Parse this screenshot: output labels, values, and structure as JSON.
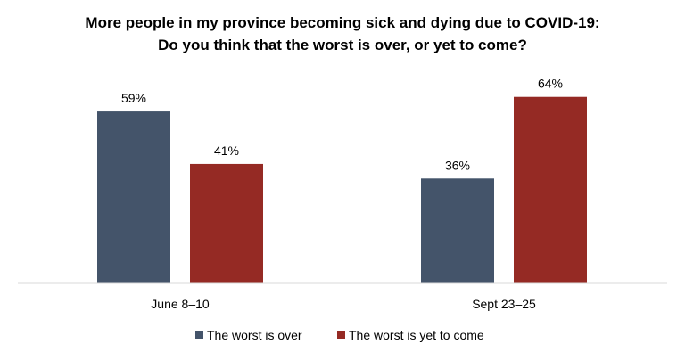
{
  "chart_data": {
    "type": "bar",
    "title_lines": [
      "More people in my province becoming sick and dying due to COVID-19:",
      "Do you think that the worst is over, or yet to come?"
    ],
    "categories": [
      "June 8–10",
      "Sept 23–25"
    ],
    "series": [
      {
        "name": "The worst is over",
        "values": [
          59,
          36
        ],
        "labels": [
          "59%",
          "36%"
        ],
        "color": "#44546a"
      },
      {
        "name": "The worst is yet to come",
        "values": [
          41,
          64
        ],
        "labels": [
          "41%",
          "64%"
        ],
        "color": "#952a24"
      }
    ],
    "ylim": [
      0,
      70
    ],
    "grid": false,
    "legend_position": "bottom"
  }
}
